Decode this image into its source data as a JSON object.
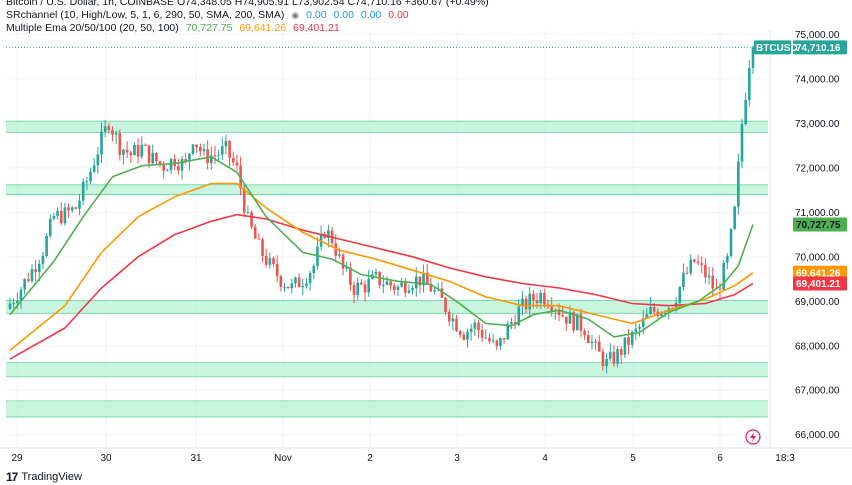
{
  "legend": {
    "line1": "Bitcoin / U.S. Dollar, 1h, COINBASE  O74,348.05  H74,905.91  L73,902.54  C74,710.16  +360.67 (+0.49%)",
    "sr_name": "SRchannel (10, High/Low, 5, 1, 6, 290, 50, SMA, 200, SMA)",
    "sr_vals": [
      "0.00",
      "0.00",
      "0.00",
      "0.00"
    ],
    "ema_name": "Multiple Ema 20/50/100 (20, 50, 100)",
    "ema_vals": [
      "70,727.75",
      "69,641.26",
      "69,401.21"
    ]
  },
  "colors": {
    "up": "#26a69a",
    "down": "#ef5350",
    "ema20": "#4caf50",
    "ema50": "#ff9800",
    "ema100": "#f23645",
    "zone_fill": "#b7f0d5",
    "zone_stroke": "#66d69f"
  },
  "footer": {
    "brand": "TradingView"
  },
  "chart_data": {
    "type": "candlestick",
    "symbol": "BTCUSD",
    "timeframe": "1h",
    "x_tick_labels": [
      "29",
      "30",
      "31",
      "Nov",
      "2",
      "3",
      "4",
      "5",
      "6",
      "18:3"
    ],
    "y_tick_labels": [
      "75,000.00",
      "74,000.00",
      "73,000.00",
      "72,000.00",
      "71,000.00",
      "70,000.00",
      "69,000.00",
      "68,000.00",
      "67,000.00",
      "66,000.00"
    ],
    "ylim": [
      65600,
      75300
    ],
    "price_tags": [
      {
        "label": "BTCUSD",
        "value": 74710.16,
        "text": "74,710.16",
        "color": "#26a69a"
      },
      {
        "label": "",
        "value": 70727.75,
        "text": "70,727.75",
        "color": "#4caf50"
      },
      {
        "label": "",
        "value": 69641.26,
        "text": "69,641.26",
        "color": "#ff9800"
      },
      {
        "label": "",
        "value": 69401.21,
        "text": "69,401.21",
        "color": "#f23645"
      }
    ],
    "sr_zones": [
      [
        72800,
        73050
      ],
      [
        71400,
        71620
      ],
      [
        68730,
        69020
      ],
      [
        67300,
        67620
      ],
      [
        66400,
        66760
      ]
    ],
    "close_path": [
      [
        0,
        68950
      ],
      [
        3,
        69300
      ],
      [
        6,
        69700
      ],
      [
        9,
        70150
      ],
      [
        12,
        70900
      ],
      [
        15,
        70950
      ],
      [
        18,
        71100
      ],
      [
        21,
        71700
      ],
      [
        24,
        72400
      ],
      [
        27,
        73050
      ],
      [
        30,
        72500
      ],
      [
        33,
        72300
      ],
      [
        36,
        72450
      ],
      [
        39,
        72200
      ],
      [
        42,
        72050
      ],
      [
        45,
        72200
      ],
      [
        48,
        72050
      ],
      [
        50,
        72700
      ],
      [
        53,
        72250
      ],
      [
        56,
        72300
      ],
      [
        59,
        72400
      ],
      [
        62,
        71950
      ],
      [
        65,
        70800
      ],
      [
        68,
        70200
      ],
      [
        71,
        69800
      ],
      [
        74,
        69500
      ],
      [
        77,
        69300
      ],
      [
        80,
        69500
      ],
      [
        83,
        69800
      ],
      [
        86,
        70600
      ],
      [
        88,
        70400
      ],
      [
        91,
        69700
      ],
      [
        94,
        69300
      ],
      [
        97,
        69350
      ],
      [
        100,
        69500
      ],
      [
        103,
        69400
      ],
      [
        106,
        69300
      ],
      [
        109,
        69450
      ],
      [
        112,
        69500
      ],
      [
        115,
        69300
      ],
      [
        118,
        69000
      ],
      [
        121,
        68600
      ],
      [
        124,
        68300
      ],
      [
        127,
        68450
      ],
      [
        130,
        68200
      ],
      [
        133,
        67900
      ],
      [
        136,
        68400
      ],
      [
        139,
        68800
      ],
      [
        142,
        69000
      ],
      [
        145,
        69150
      ],
      [
        148,
        69000
      ],
      [
        151,
        68700
      ],
      [
        154,
        68550
      ],
      [
        157,
        68400
      ],
      [
        160,
        67900
      ],
      [
        163,
        67600
      ],
      [
        166,
        67800
      ],
      [
        169,
        68100
      ],
      [
        172,
        68400
      ],
      [
        175,
        68750
      ],
      [
        178,
        68850
      ],
      [
        181,
        68950
      ],
      [
        184,
        69500
      ],
      [
        187,
        69900
      ],
      [
        190,
        69600
      ],
      [
        193,
        69200
      ],
      [
        196,
        69900
      ],
      [
        198,
        71000
      ],
      [
        200,
        73000
      ],
      [
        202,
        74400
      ],
      [
        203,
        74710.16
      ]
    ],
    "ema20": [
      [
        0,
        68700
      ],
      [
        12,
        69900
      ],
      [
        20,
        70900
      ],
      [
        28,
        71800
      ],
      [
        36,
        72050
      ],
      [
        45,
        72100
      ],
      [
        55,
        72250
      ],
      [
        62,
        71900
      ],
      [
        70,
        70900
      ],
      [
        80,
        70100
      ],
      [
        88,
        69950
      ],
      [
        96,
        69600
      ],
      [
        106,
        69450
      ],
      [
        115,
        69380
      ],
      [
        122,
        69000
      ],
      [
        130,
        68500
      ],
      [
        137,
        68450
      ],
      [
        143,
        68700
      ],
      [
        150,
        68800
      ],
      [
        158,
        68600
      ],
      [
        165,
        68200
      ],
      [
        172,
        68300
      ],
      [
        180,
        68750
      ],
      [
        188,
        69000
      ],
      [
        195,
        69400
      ],
      [
        199,
        69800
      ],
      [
        203,
        70727.75
      ]
    ],
    "ema50": [
      [
        0,
        67900
      ],
      [
        15,
        68900
      ],
      [
        25,
        70100
      ],
      [
        35,
        70900
      ],
      [
        45,
        71350
      ],
      [
        55,
        71650
      ],
      [
        62,
        71650
      ],
      [
        70,
        71100
      ],
      [
        80,
        70550
      ],
      [
        90,
        70150
      ],
      [
        100,
        69950
      ],
      [
        110,
        69700
      ],
      [
        120,
        69450
      ],
      [
        130,
        69100
      ],
      [
        140,
        68900
      ],
      [
        150,
        68900
      ],
      [
        160,
        68700
      ],
      [
        170,
        68500
      ],
      [
        180,
        68800
      ],
      [
        190,
        69050
      ],
      [
        198,
        69350
      ],
      [
        203,
        69641.26
      ]
    ],
    "ema100": [
      [
        0,
        67700
      ],
      [
        15,
        68400
      ],
      [
        25,
        69300
      ],
      [
        35,
        70000
      ],
      [
        45,
        70500
      ],
      [
        55,
        70800
      ],
      [
        62,
        70950
      ],
      [
        70,
        70850
      ],
      [
        80,
        70600
      ],
      [
        90,
        70400
      ],
      [
        100,
        70200
      ],
      [
        110,
        70000
      ],
      [
        120,
        69750
      ],
      [
        130,
        69550
      ],
      [
        140,
        69400
      ],
      [
        150,
        69300
      ],
      [
        160,
        69150
      ],
      [
        170,
        68950
      ],
      [
        180,
        68900
      ],
      [
        190,
        68950
      ],
      [
        198,
        69150
      ],
      [
        203,
        69401.21
      ]
    ]
  }
}
